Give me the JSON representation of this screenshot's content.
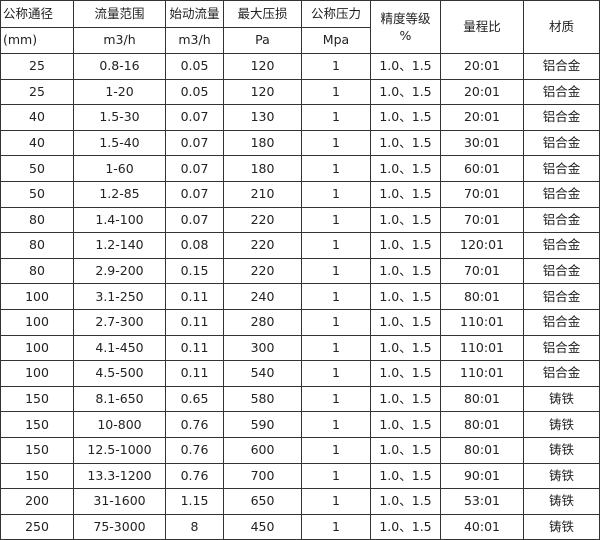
{
  "header": {
    "row1": [
      "公称通径",
      "流量范围",
      "始动流量",
      "最大压损",
      "公称压力"
    ],
    "row2": [
      "(mm)",
      "m3/h",
      "m3/h",
      "Pa",
      "Mpa"
    ],
    "accuracy": {
      "label": "精度等级",
      "unit": "%"
    },
    "ratio": "量程比",
    "material": "材质"
  },
  "rows": [
    [
      "25",
      "0.8-16",
      "0.05",
      "120",
      "1",
      "1.0、1.5",
      "20:01",
      "铝合金"
    ],
    [
      "25",
      "1-20",
      "0.05",
      "120",
      "1",
      "1.0、1.5",
      "20:01",
      "铝合金"
    ],
    [
      "40",
      "1.5-30",
      "0.07",
      "130",
      "1",
      "1.0、1.5",
      "20:01",
      "铝合金"
    ],
    [
      "40",
      "1.5-40",
      "0.07",
      "180",
      "1",
      "1.0、1.5",
      "30:01",
      "铝合金"
    ],
    [
      "50",
      "1-60",
      "0.07",
      "180",
      "1",
      "1.0、1.5",
      "60:01",
      "铝合金"
    ],
    [
      "50",
      "1.2-85",
      "0.07",
      "210",
      "1",
      "1.0、1.5",
      "70:01",
      "铝合金"
    ],
    [
      "80",
      "1.4-100",
      "0.07",
      "220",
      "1",
      "1.0、1.5",
      "70:01",
      "铝合金"
    ],
    [
      "80",
      "1.2-140",
      "0.08",
      "220",
      "1",
      "1.0、1.5",
      "120:01",
      "铝合金"
    ],
    [
      "80",
      "2.9-200",
      "0.15",
      "220",
      "1",
      "1.0、1.5",
      "70:01",
      "铝合金"
    ],
    [
      "100",
      "3.1-250",
      "0.11",
      "240",
      "1",
      "1.0、1.5",
      "80:01",
      "铝合金"
    ],
    [
      "100",
      "2.7-300",
      "0.11",
      "280",
      "1",
      "1.0、1.5",
      "110:01",
      "铝合金"
    ],
    [
      "100",
      "4.1-450",
      "0.11",
      "300",
      "1",
      "1.0、1.5",
      "110:01",
      "铝合金"
    ],
    [
      "100",
      "4.5-500",
      "0.11",
      "540",
      "1",
      "1.0、1.5",
      "110:01",
      "铝合金"
    ],
    [
      "150",
      "8.1-650",
      "0.65",
      "580",
      "1",
      "1.0、1.5",
      "80:01",
      "铸铁"
    ],
    [
      "150",
      "10-800",
      "0.76",
      "590",
      "1",
      "1.0、1.5",
      "80:01",
      "铸铁"
    ],
    [
      "150",
      "12.5-1000",
      "0.76",
      "600",
      "1",
      "1.0、1.5",
      "80:01",
      "铸铁"
    ],
    [
      "150",
      "13.3-1200",
      "0.76",
      "700",
      "1",
      "1.0、1.5",
      "90:01",
      "铸铁"
    ],
    [
      "200",
      "31-1600",
      "1.15",
      "650",
      "1",
      "1.0、1.5",
      "53:01",
      "铸铁"
    ],
    [
      "250",
      "75-3000",
      "8",
      "450",
      "1",
      "1.0、1.5",
      "40:01",
      "铸铁"
    ]
  ]
}
